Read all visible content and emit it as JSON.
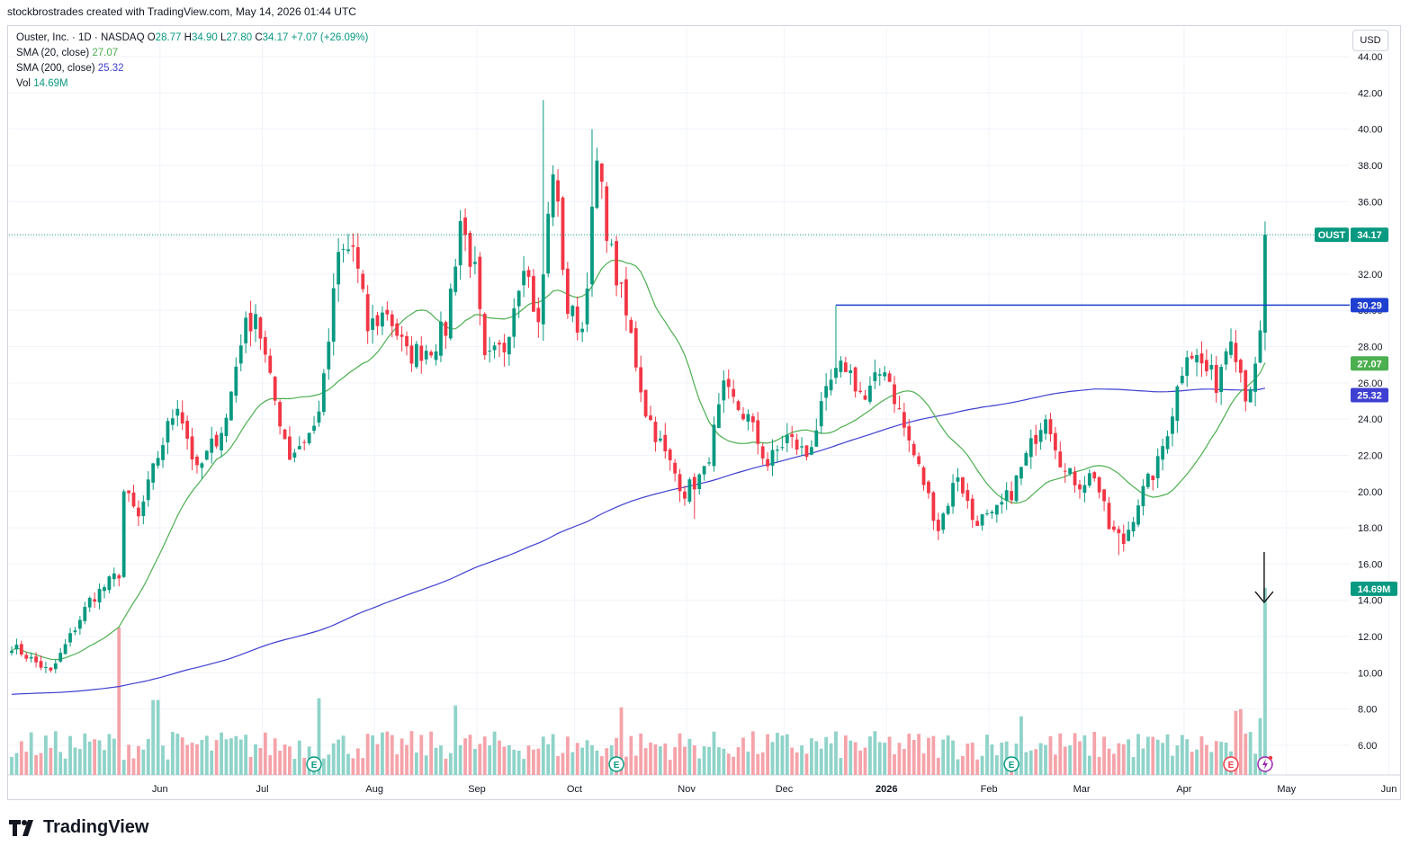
{
  "header": {
    "attribution": "stockbrostrades created with TradingView.com, May 14, 2026 01:44 UTC"
  },
  "legend": {
    "symbol": "Ouster, Inc. · 1D · NASDAQ",
    "ohlc": [
      {
        "label": "O",
        "value": "28.77"
      },
      {
        "label": "H",
        "value": "34.90"
      },
      {
        "label": "L",
        "value": "27.80"
      },
      {
        "label": "C",
        "value": "34.17"
      }
    ],
    "change": "+7.07 (+26.09%)",
    "sma20_label": "SMA (20, close)",
    "sma20_value": "27.07",
    "sma200_label": "SMA (200, close)",
    "sma200_value": "25.32",
    "vol_label": "Vol",
    "vol_value": "14.69M"
  },
  "currency": "USD",
  "brand": "TradingView",
  "colors": {
    "up": "#089981",
    "down": "#f23645",
    "sma20": "#4caf50",
    "sma200": "#3f3fd1",
    "level": "#1e3fcf",
    "vol_up": "#8fd3c9",
    "vol_down": "#f5a3aa"
  },
  "chart_data": {
    "type": "candlestick",
    "y_ticks": [
      "44.00",
      "42.00",
      "40.00",
      "38.00",
      "36.00",
      "34.00",
      "32.00",
      "30.00",
      "28.00",
      "26.00",
      "24.00",
      "22.00",
      "20.00",
      "18.00",
      "16.00",
      "14.00",
      "12.00",
      "10.00",
      "8.00",
      "6.00"
    ],
    "x_ticks": [
      {
        "label": "Jun",
        "idx": 16
      },
      {
        "label": "Jul",
        "idx": 37
      },
      {
        "label": "Aug",
        "idx": 60
      },
      {
        "label": "Sep",
        "idx": 81
      },
      {
        "label": "Oct",
        "idx": 101
      },
      {
        "label": "Nov",
        "idx": 124
      },
      {
        "label": "Dec",
        "idx": 144
      },
      {
        "label": "2026",
        "idx": 165
      },
      {
        "label": "Feb",
        "idx": 186
      },
      {
        "label": "Mar",
        "idx": 205
      },
      {
        "label": "Apr",
        "idx": 226
      },
      {
        "label": "May",
        "idx": 247
      },
      {
        "label": "Jun",
        "idx": 268
      }
    ],
    "series_waypoints": [
      {
        "idx": 0,
        "close": 11.5
      },
      {
        "idx": 8,
        "close": 10.0
      },
      {
        "idx": 16,
        "close": 14.0
      },
      {
        "idx": 22,
        "close": 15.5
      },
      {
        "idx": 23,
        "close": 20.0
      },
      {
        "idx": 26,
        "close": 18.5
      },
      {
        "idx": 30,
        "close": 22.0
      },
      {
        "idx": 34,
        "close": 25.0
      },
      {
        "idx": 38,
        "close": 21.0
      },
      {
        "idx": 44,
        "close": 24.0
      },
      {
        "idx": 47,
        "close": 28.5
      },
      {
        "idx": 50,
        "close": 30.0
      },
      {
        "idx": 53,
        "close": 26.0
      },
      {
        "idx": 57,
        "close": 22.0
      },
      {
        "idx": 62,
        "close": 23.5
      },
      {
        "idx": 64,
        "close": 26.0
      },
      {
        "idx": 67,
        "close": 33.0
      },
      {
        "idx": 70,
        "close": 33.5
      },
      {
        "idx": 73,
        "close": 29.0
      },
      {
        "idx": 77,
        "close": 30.0
      },
      {
        "idx": 81,
        "close": 27.5
      },
      {
        "idx": 86,
        "close": 28.0
      },
      {
        "idx": 89,
        "close": 29.0
      },
      {
        "idx": 92,
        "close": 35.0
      },
      {
        "idx": 95,
        "close": 32.0
      },
      {
        "idx": 97,
        "close": 27.0
      },
      {
        "idx": 101,
        "close": 28.0
      },
      {
        "idx": 105,
        "close": 33.0
      },
      {
        "idx": 108,
        "close": 29.0
      },
      {
        "idx": 111,
        "close": 38.0
      },
      {
        "idx": 114,
        "close": 30.0
      },
      {
        "idx": 117,
        "close": 29.0
      },
      {
        "idx": 120,
        "close": 38.0
      },
      {
        "idx": 123,
        "close": 33.0
      },
      {
        "idx": 127,
        "close": 28.5
      },
      {
        "idx": 130,
        "close": 24.5
      },
      {
        "idx": 134,
        "close": 22.0
      },
      {
        "idx": 138,
        "close": 20.0
      },
      {
        "idx": 142,
        "close": 21.0
      },
      {
        "idx": 146,
        "close": 25.5
      },
      {
        "idx": 151,
        "close": 24.0
      },
      {
        "idx": 155,
        "close": 21.5
      },
      {
        "idx": 159,
        "close": 23.0
      },
      {
        "idx": 163,
        "close": 22.0
      },
      {
        "idx": 168,
        "close": 26.0
      },
      {
        "idx": 171,
        "close": 27.0
      },
      {
        "idx": 175,
        "close": 25.0
      },
      {
        "idx": 179,
        "close": 27.0
      },
      {
        "idx": 183,
        "close": 23.5
      },
      {
        "idx": 187,
        "close": 20.5
      },
      {
        "idx": 190,
        "close": 18.0
      },
      {
        "idx": 194,
        "close": 21.0
      },
      {
        "idx": 197,
        "close": 18.5
      },
      {
        "idx": 201,
        "close": 18.5
      },
      {
        "idx": 205,
        "close": 20.0
      },
      {
        "idx": 209,
        "close": 22.5
      },
      {
        "idx": 212,
        "close": 24.5
      },
      {
        "idx": 216,
        "close": 21.0
      },
      {
        "idx": 219,
        "close": 20.5
      },
      {
        "idx": 222,
        "close": 21.0
      },
      {
        "idx": 225,
        "close": 18.0
      },
      {
        "idx": 228,
        "close": 17.2
      },
      {
        "idx": 231,
        "close": 19.5
      },
      {
        "idx": 235,
        "close": 21.5
      },
      {
        "idx": 238,
        "close": 24.5
      },
      {
        "idx": 241,
        "close": 28.0
      },
      {
        "idx": 244,
        "close": 27.0
      },
      {
        "idx": 247,
        "close": 26.0
      },
      {
        "idx": 250,
        "close": 29.0
      },
      {
        "idx": 253,
        "close": 25.5
      },
      {
        "idx": 255,
        "close": 26.5
      },
      {
        "idx": 256,
        "close": 28.5
      },
      {
        "idx": 257,
        "close": 34.17
      }
    ],
    "highlights": [
      {
        "idx": 109,
        "high": 41.6
      },
      {
        "idx": 119,
        "high": 40.0
      },
      {
        "idx": 169,
        "high": 30.29
      },
      {
        "idx": 227,
        "low": 16.5
      },
      {
        "idx": 140,
        "low": 18.5
      },
      {
        "idx": 257,
        "high": 34.9,
        "low": 27.8,
        "open": 28.77
      }
    ],
    "volume": {
      "spikes": [
        {
          "idx": 22,
          "value": 12.5
        },
        {
          "idx": 29,
          "value": 8.5
        },
        {
          "idx": 30,
          "value": 8.5
        },
        {
          "idx": 63,
          "value": 8.6
        },
        {
          "idx": 91,
          "value": 8.2
        },
        {
          "idx": 125,
          "value": 8.1
        },
        {
          "idx": 207,
          "value": 7.6
        },
        {
          "idx": 251,
          "value": 7.9
        },
        {
          "idx": 252,
          "value": 8.0
        },
        {
          "idx": 256,
          "value": 7.5
        },
        {
          "idx": 257,
          "value": 14.69
        }
      ]
    },
    "sma20_last": 27.07,
    "sma200_last": 25.32,
    "last_price": 34.17,
    "resistance_level": 30.29,
    "resistance_start_idx": 169,
    "earnings_markers": [
      62,
      124,
      205,
      250
    ],
    "price_tag": {
      "symbol": "OUST",
      "value": "34.17"
    },
    "level_tag": "30.29",
    "sma20_tag": "27.07",
    "sma200_tag": "25.32",
    "volume_tag": "14.69M",
    "earnings_label": "E",
    "arrow_idx": 257
  }
}
